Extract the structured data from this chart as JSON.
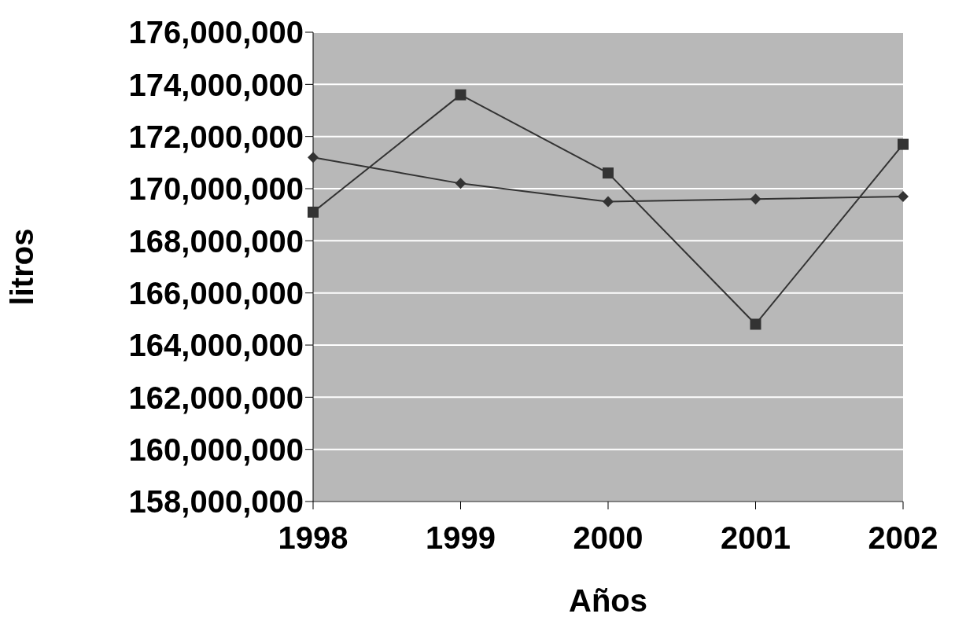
{
  "chart_data": {
    "type": "line",
    "xlabel": "Años",
    "ylabel": "litros",
    "categories": [
      "1998",
      "1999",
      "2000",
      "2001",
      "2002"
    ],
    "series": [
      {
        "color": "#333333",
        "marker": "square",
        "values": [
          169100000,
          173600000,
          170600000,
          164800000,
          171700000
        ]
      },
      {
        "color": "#333333",
        "marker": "diamond",
        "values": [
          171200000,
          170200000,
          169500000,
          169600000,
          169700000
        ]
      }
    ],
    "ylim": [
      158000000,
      176000000
    ],
    "yticks": [
      {
        "value": 158000000,
        "label": "158,000,000"
      },
      {
        "value": 160000000,
        "label": "160,000,000"
      },
      {
        "value": 162000000,
        "label": "162,000,000"
      },
      {
        "value": 164000000,
        "label": "164,000,000"
      },
      {
        "value": 166000000,
        "label": "166,000,000"
      },
      {
        "value": 168000000,
        "label": "168,000,000"
      },
      {
        "value": 170000000,
        "label": "170,000,000"
      },
      {
        "value": 172000000,
        "label": "172,000,000"
      },
      {
        "value": 174000000,
        "label": "174,000,000"
      },
      {
        "value": 176000000,
        "label": "176,000,000"
      }
    ],
    "grid": "y",
    "line_style": "solid"
  }
}
